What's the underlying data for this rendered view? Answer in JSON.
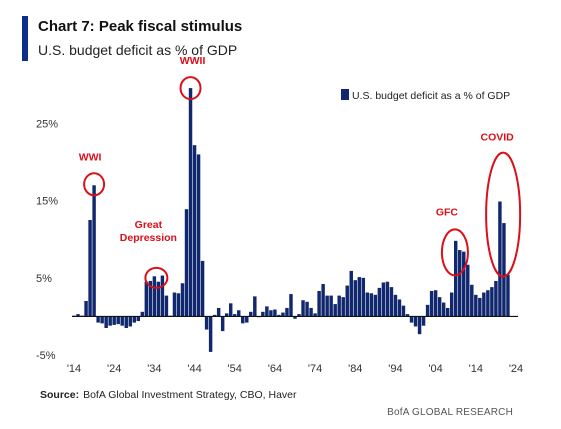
{
  "header": {
    "title": "Chart 7: Peak fiscal stimulus",
    "subtitle": "U.S. budget deficit as % of GDP"
  },
  "source": {
    "label": "Source:",
    "text": "BofA Global Investment Strategy, CBO, Haver"
  },
  "footer": {
    "brand": "BofA GLOBAL RESEARCH"
  },
  "colors": {
    "bar": "#12286e",
    "annotation": "#d9101a",
    "accent": "#0b2d8c"
  },
  "chart_data": {
    "type": "bar",
    "title": "Chart 7: Peak fiscal stimulus",
    "subtitle": "U.S. budget deficit as % of GDP",
    "legend": {
      "label": "U.S. budget deficit as a % of GDP",
      "position": "top-right"
    },
    "ylim": [
      -5,
      30
    ],
    "y_ticks": [
      -5,
      5,
      15,
      25
    ],
    "y_tick_labels": [
      "-5%",
      "5%",
      "15%",
      "25%"
    ],
    "xlim": [
      1913.5,
      2024.5
    ],
    "x_ticks": [
      1914,
      1924,
      1934,
      1944,
      1954,
      1964,
      1974,
      1984,
      1994,
      2004,
      2014,
      2024
    ],
    "x_tick_labels": [
      "'14",
      "'24",
      "'34",
      "'44",
      "'54",
      "'64",
      "'74",
      "'84",
      "'94",
      "'04",
      "'14",
      "'24"
    ],
    "grid": false,
    "x": [
      1914,
      1915,
      1916,
      1917,
      1918,
      1919,
      1920,
      1921,
      1922,
      1923,
      1924,
      1925,
      1926,
      1927,
      1928,
      1929,
      1930,
      1931,
      1932,
      1933,
      1934,
      1935,
      1936,
      1937,
      1938,
      1939,
      1940,
      1941,
      1942,
      1943,
      1944,
      1945,
      1946,
      1947,
      1948,
      1949,
      1950,
      1951,
      1952,
      1953,
      1954,
      1955,
      1956,
      1957,
      1958,
      1959,
      1960,
      1961,
      1962,
      1963,
      1964,
      1965,
      1966,
      1967,
      1968,
      1969,
      1970,
      1971,
      1972,
      1973,
      1974,
      1975,
      1976,
      1977,
      1978,
      1979,
      1980,
      1981,
      1982,
      1983,
      1984,
      1985,
      1986,
      1987,
      1988,
      1989,
      1990,
      1991,
      1992,
      1993,
      1994,
      1995,
      1996,
      1997,
      1998,
      1999,
      2000,
      2001,
      2002,
      2003,
      2004,
      2005,
      2006,
      2007,
      2008,
      2009,
      2010,
      2011,
      2012,
      2013,
      2014,
      2015,
      2016,
      2017,
      2018,
      2019,
      2020,
      2021,
      2022
    ],
    "values": [
      0.1,
      0.3,
      0.1,
      2.0,
      12.5,
      17.0,
      -0.8,
      -0.9,
      -1.5,
      -1.2,
      -1.1,
      -1.0,
      -1.2,
      -1.5,
      -1.3,
      -0.8,
      -0.6,
      0.6,
      4.5,
      4.6,
      5.2,
      4.5,
      5.3,
      2.7,
      0.1,
      3.1,
      3.0,
      4.3,
      13.9,
      29.6,
      22.2,
      21.0,
      7.2,
      -1.7,
      -4.6,
      0.2,
      1.1,
      -1.9,
      0.4,
      1.7,
      0.3,
      0.8,
      -0.9,
      -0.8,
      0.6,
      2.6,
      -0.1,
      0.6,
      1.3,
      0.8,
      0.9,
      0.2,
      0.5,
      1.1,
      2.9,
      -0.3,
      0.3,
      2.1,
      1.9,
      1.1,
      0.4,
      3.3,
      4.2,
      2.7,
      2.7,
      1.6,
      2.7,
      2.5,
      4.0,
      5.9,
      4.7,
      5.1,
      5.0,
      3.1,
      3.0,
      2.8,
      3.7,
      4.4,
      4.5,
      3.8,
      2.8,
      2.2,
      1.4,
      0.3,
      -0.8,
      -1.3,
      -2.3,
      -1.2,
      1.5,
      3.3,
      3.4,
      2.5,
      1.8,
      1.1,
      3.1,
      9.8,
      8.6,
      8.4,
      6.7,
      4.1,
      2.8,
      2.4,
      3.1,
      3.4,
      3.8,
      4.6,
      14.9,
      12.1,
      5.4
    ],
    "annotations": [
      "WWI",
      "Great\nDepression",
      "WWII",
      "GFC",
      "COVID"
    ]
  }
}
